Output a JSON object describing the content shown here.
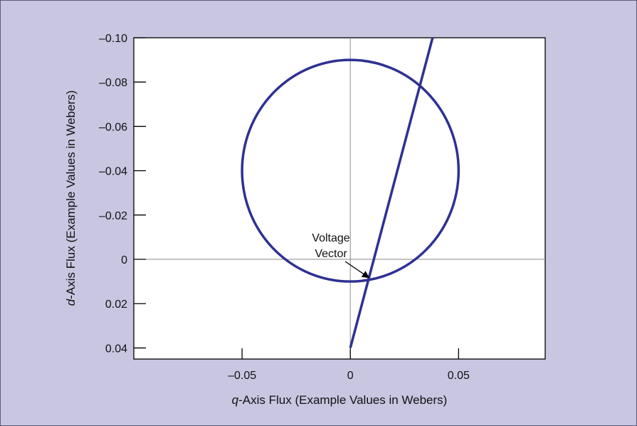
{
  "colors": {
    "background": "#c9c6e2",
    "plot_background": "#ffffff",
    "series": "#2e3192",
    "axis": "#000000",
    "reference_line": "#8a8a8a"
  },
  "chart_data": {
    "type": "line",
    "xlabel": {
      "italic": "q",
      "rest": "-Axis Flux (Example Values in Webers)"
    },
    "ylabel": {
      "italic": "d",
      "rest": "-Axis Flux (Example Values in Webers)"
    },
    "xlim": [
      -0.1,
      0.09
    ],
    "ylim": [
      0.045,
      -0.1
    ],
    "y_inverted": true,
    "grid": false,
    "reference_lines": {
      "x": 0,
      "y": 0
    },
    "x_ticks": [
      {
        "value": -0.05,
        "label": "–0.05"
      },
      {
        "value": 0,
        "label": "0"
      },
      {
        "value": 0.05,
        "label": "0.05"
      }
    ],
    "y_ticks": [
      {
        "value": -0.1,
        "label": "–0.10"
      },
      {
        "value": -0.08,
        "label": "–0.08"
      },
      {
        "value": -0.06,
        "label": "–0.06"
      },
      {
        "value": -0.04,
        "label": "–0.04"
      },
      {
        "value": -0.02,
        "label": "–0.02"
      },
      {
        "value": 0,
        "label": "0"
      },
      {
        "value": 0.02,
        "label": "0.02"
      },
      {
        "value": 0.04,
        "label": "0.04"
      }
    ],
    "series": [
      {
        "kind": "circle",
        "center": [
          0,
          -0.04
        ],
        "radius": 0.05
      },
      {
        "kind": "line",
        "points": [
          [
            0,
            0.04
          ],
          [
            0.038,
            -0.1
          ]
        ]
      }
    ],
    "annotations": [
      {
        "lines": [
          "Voltage",
          "Vector"
        ],
        "points_to": [
          0.0095,
          0.0095
        ]
      }
    ]
  }
}
